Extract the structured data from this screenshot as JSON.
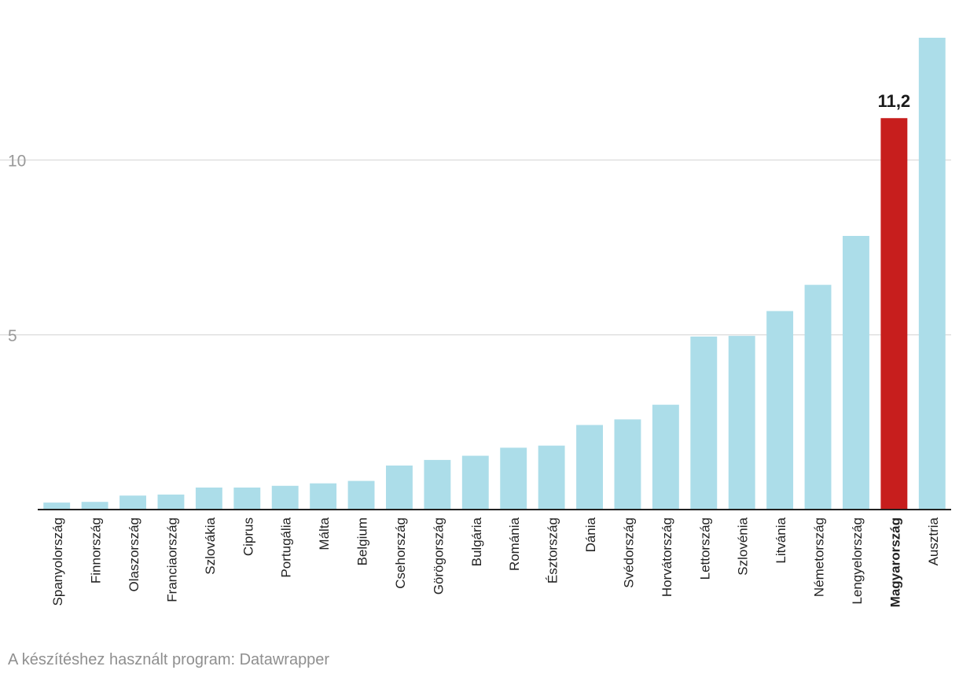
{
  "chart_data": {
    "type": "bar",
    "categories": [
      "Spanyolország",
      "Finnország",
      "Olaszország",
      "Franciaország",
      "Szlovákia",
      "Ciprus",
      "Portugália",
      "Málta",
      "Belgium",
      "Csehország",
      "Görögország",
      "Bulgária",
      "Románia",
      "Észtország",
      "Dánia",
      "Svédország",
      "Horvátország",
      "Lettország",
      "Szlovénia",
      "Litvánia",
      "Németország",
      "Lengyelország",
      "Magyarország",
      "Ausztria"
    ],
    "values": [
      0.2,
      0.22,
      0.4,
      0.43,
      0.63,
      0.63,
      0.68,
      0.75,
      0.82,
      1.26,
      1.42,
      1.54,
      1.77,
      1.83,
      2.42,
      2.58,
      3.0,
      4.95,
      4.97,
      5.68,
      6.43,
      7.83,
      11.2,
      13.5
    ],
    "highlight": {
      "category": "Magyarország",
      "label": "11,2",
      "color": "#c71e1d"
    },
    "bar_color": "#acdde9",
    "yticks": [
      5,
      10
    ],
    "ylim": [
      0,
      13.5
    ],
    "grid": true,
    "title": "",
    "xlabel": "",
    "ylabel": ""
  },
  "footer": {
    "credit": "A készítéshez használt program: Datawrapper"
  }
}
